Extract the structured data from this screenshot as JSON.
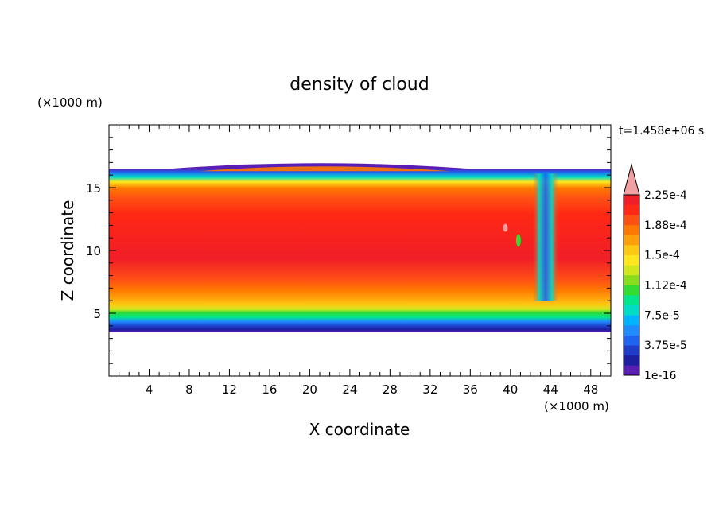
{
  "chart_data": {
    "type": "heatmap",
    "title": "density of cloud",
    "xlabel": "X coordinate",
    "ylabel": "Z coordinate",
    "x_unit": "(×1000 m)",
    "y_unit": "(×1000 m)",
    "time_label": "t=1.458e+06 s",
    "xlim": [
      0,
      50
    ],
    "ylim": [
      0,
      20
    ],
    "x_ticks": [
      4,
      8,
      12,
      16,
      20,
      24,
      28,
      32,
      36,
      40,
      44,
      48
    ],
    "y_ticks": [
      5,
      10,
      15
    ],
    "colorbar": {
      "levels": [
        "1e-16",
        "3.75e-5",
        "7.5e-5",
        "1.12e-4",
        "1.5e-4",
        "1.88e-4",
        "2.25e-4"
      ],
      "colors": [
        "#5a1eb4",
        "#1e1ea0",
        "#1e3cc8",
        "#1e64f0",
        "#1e8cff",
        "#00b4ff",
        "#00dcc8",
        "#00e68c",
        "#32dc32",
        "#8cdc1e",
        "#d2e61e",
        "#ffe61e",
        "#ffc814",
        "#ffa00a",
        "#ff7800",
        "#ff5014",
        "#ff2814",
        "#f01e28"
      ],
      "extend_color": "#f0a0a0"
    },
    "cloud": {
      "base_km": 3.5,
      "top_km": 16.5,
      "core_band_km": [
        8,
        15
      ],
      "updraft_x_km": 43.5
    }
  }
}
